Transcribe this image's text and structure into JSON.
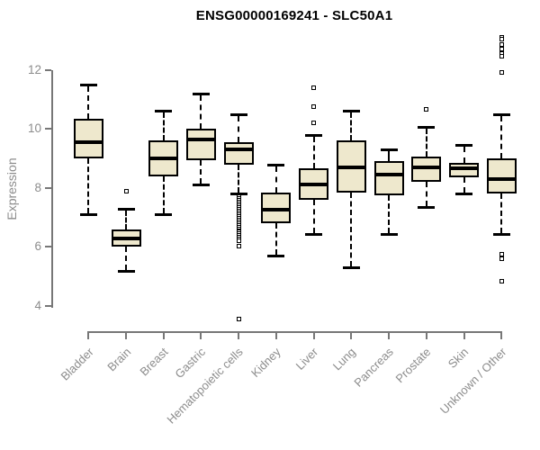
{
  "title": "ENSG00000169241 - SLC50A1",
  "y_axis_label": "Expression",
  "chart_data": {
    "type": "boxplot",
    "title": "ENSG00000169241 - SLC50A1",
    "xlabel": "",
    "ylabel": "Expression",
    "ylim": [
      3.3,
      13.3
    ],
    "yticks": [
      4,
      6,
      8,
      10,
      12
    ],
    "grid": false,
    "legend": "none",
    "categories": [
      "Bladder",
      "Brain",
      "Breast",
      "Gastric",
      "Hematopoietic cells",
      "Kidney",
      "Liver",
      "Lung",
      "Pancreas",
      "Prostate",
      "Skin",
      "Unknown / Other"
    ],
    "series": [
      {
        "category": "Bladder",
        "whisker_low": 7.1,
        "q1": 9.0,
        "median": 9.55,
        "q3": 10.35,
        "whisker_high": 11.5,
        "outliers": []
      },
      {
        "category": "Brain",
        "whisker_low": 5.2,
        "q1": 6.0,
        "median": 6.3,
        "q3": 6.6,
        "whisker_high": 7.3,
        "outliers": [
          7.9
        ]
      },
      {
        "category": "Breast",
        "whisker_low": 7.1,
        "q1": 8.4,
        "median": 9.0,
        "q3": 9.6,
        "whisker_high": 10.6,
        "outliers": []
      },
      {
        "category": "Gastric",
        "whisker_low": 8.1,
        "q1": 8.95,
        "median": 9.65,
        "q3": 10.0,
        "whisker_high": 11.2,
        "outliers": []
      },
      {
        "category": "Hematopoietic cells",
        "whisker_low": 7.8,
        "q1": 8.8,
        "median": 9.3,
        "q3": 9.55,
        "whisker_high": 10.5,
        "outliers": [
          7.7,
          7.64,
          7.58,
          7.52,
          7.46,
          7.4,
          7.34,
          7.28,
          7.22,
          7.16,
          7.1,
          7.04,
          6.98,
          6.92,
          6.86,
          6.8,
          6.74,
          6.68,
          6.62,
          6.56,
          6.5,
          6.44,
          6.38,
          6.32,
          6.26,
          6.2,
          6.03,
          3.55
        ]
      },
      {
        "category": "Kidney",
        "whisker_low": 5.7,
        "q1": 6.8,
        "median": 7.25,
        "q3": 7.85,
        "whisker_high": 8.8,
        "outliers": []
      },
      {
        "category": "Liver",
        "whisker_low": 6.45,
        "q1": 7.6,
        "median": 8.1,
        "q3": 8.65,
        "whisker_high": 9.8,
        "outliers": [
          10.2,
          10.75,
          11.4
        ]
      },
      {
        "category": "Lung",
        "whisker_low": 5.3,
        "q1": 7.85,
        "median": 8.7,
        "q3": 9.6,
        "whisker_high": 10.6,
        "outliers": []
      },
      {
        "category": "Pancreas",
        "whisker_low": 6.45,
        "q1": 7.75,
        "median": 8.45,
        "q3": 8.9,
        "whisker_high": 9.3,
        "outliers": []
      },
      {
        "category": "Prostate",
        "whisker_low": 7.35,
        "q1": 8.2,
        "median": 8.7,
        "q3": 9.05,
        "whisker_high": 10.05,
        "outliers": [
          10.65
        ]
      },
      {
        "category": "Skin",
        "whisker_low": 7.8,
        "q1": 8.35,
        "median": 8.65,
        "q3": 8.85,
        "whisker_high": 9.45,
        "outliers": []
      },
      {
        "category": "Unknown / Other",
        "whisker_low": 6.45,
        "q1": 7.8,
        "median": 8.3,
        "q3": 9.0,
        "whisker_high": 10.5,
        "outliers": [
          13.1,
          13.05,
          12.85,
          12.7,
          12.55,
          12.45,
          11.9,
          5.75,
          5.6,
          4.85
        ]
      }
    ],
    "colors": {
      "box_fill": "#EEE8CD",
      "box_border": "#000000",
      "median": "#000000",
      "whisker": "#000000",
      "outlier_border": "#000000",
      "axis": "#777777",
      "tick_label": "#8C8C8C",
      "title": "#000000"
    }
  }
}
